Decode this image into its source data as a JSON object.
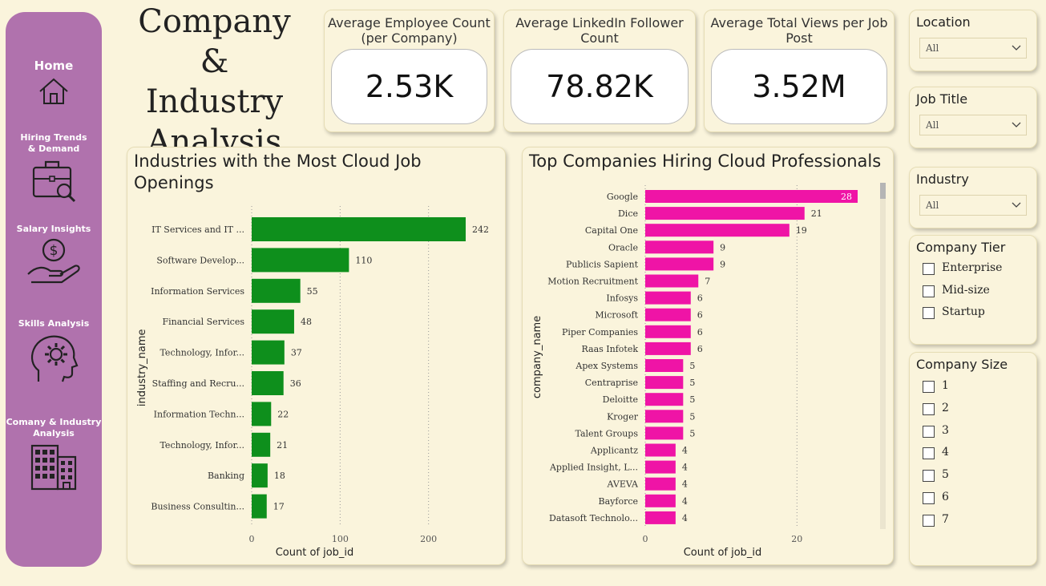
{
  "title": "Company & Industry Analysis",
  "title_lines": [
    "Company &",
    "Industry",
    "Analysis"
  ],
  "nav": [
    {
      "label": "Home",
      "icon": "home-icon"
    },
    {
      "label": "Hiring Trends & Demand",
      "label_lines": [
        "Hiring Trends",
        "& Demand"
      ],
      "icon": "briefcase-search-icon"
    },
    {
      "label": "Salary Insights",
      "icon": "salary-hand-icon"
    },
    {
      "label": "Skills Analysis",
      "icon": "head-gear-icon"
    },
    {
      "label": "Comany & Industry Analysis",
      "label_lines": [
        "Comany & Industry",
        "Analysis"
      ],
      "icon": "buildings-icon"
    }
  ],
  "kpis": [
    {
      "title": "Average Employee Count (per Company)",
      "value": "2.53K"
    },
    {
      "title": "Average LinkedIn Follower Count",
      "value": "78.82K"
    },
    {
      "title": "Average Total Views per Job Post",
      "value": "3.52M"
    }
  ],
  "slicers": {
    "location": {
      "title": "Location",
      "value": "All"
    },
    "job_title": {
      "title": "Job Title",
      "value": "All"
    },
    "industry": {
      "title": "Industry",
      "value": "All"
    },
    "company_tier": {
      "title": "Company Tier",
      "options": [
        "Enterprise",
        "Mid-size",
        "Startup"
      ]
    },
    "company_size": {
      "title": "Company Size",
      "options": [
        "1",
        "2",
        "3",
        "4",
        "5",
        "6",
        "7"
      ]
    }
  },
  "colors": {
    "sidebar": "#b072ad",
    "industry_bar": "#0e8f1c",
    "company_bar": "#ef14a6",
    "background": "#faf4dc"
  },
  "chart_data": [
    {
      "type": "bar",
      "orientation": "horizontal",
      "title": "Industries with the Most Cloud Job Openings",
      "title_lines": [
        "Industries with the Most Cloud Job",
        "Openings"
      ],
      "xlabel": "Count of job_id",
      "ylabel": "industry_name",
      "xlim": [
        0,
        242
      ],
      "xticks": [
        0,
        100,
        200
      ],
      "grid": "vertical dotted",
      "categories": [
        "IT Services and IT ...",
        "Software Develop...",
        "Information Services",
        "Financial Services",
        "Technology, Infor...",
        "Staffing and Recru...",
        "Information Techn...",
        "Technology, Infor...",
        "Banking",
        "Business Consultin..."
      ],
      "values": [
        242,
        110,
        55,
        48,
        37,
        36,
        22,
        21,
        18,
        17
      ]
    },
    {
      "type": "bar",
      "orientation": "horizontal",
      "title": "Top Companies Hiring Cloud Professionals",
      "xlabel": "Count of job_id",
      "ylabel": "company_name",
      "xlim": [
        0,
        28
      ],
      "xticks": [
        0,
        20
      ],
      "grid": "vertical dotted",
      "categories": [
        "Google",
        "Dice",
        "Capital One",
        "Oracle",
        "Publicis Sapient",
        "Motion Recruitment",
        "Infosys",
        "Microsoft",
        "Piper Companies",
        "Raas Infotek",
        "Apex Systems",
        "Centraprise",
        "Deloitte",
        "Kroger",
        "Talent Groups",
        "Applicantz",
        "Applied Insight, L...",
        "AVEVA",
        "Bayforce",
        "Datasoft Technolo..."
      ],
      "values": [
        28,
        21,
        19,
        9,
        9,
        7,
        6,
        6,
        6,
        6,
        5,
        5,
        5,
        5,
        5,
        4,
        4,
        4,
        4,
        4
      ]
    }
  ]
}
